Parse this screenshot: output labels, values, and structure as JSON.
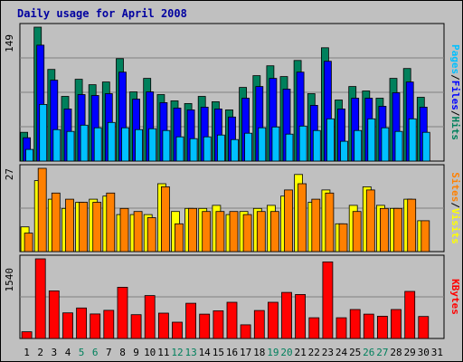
{
  "title": "Daily usage for April 2008",
  "colors": {
    "hits": "#00805c",
    "files": "#0000ff",
    "pages": "#00c0ff",
    "visits": "#ffff00",
    "sites": "#ff8000",
    "kbytes": "#ff0000",
    "weekend_label": "#00805c",
    "weekday_label": "#000000",
    "panel_bg": "#c0c0c0",
    "gridline": "#808080",
    "separator": "#000000"
  },
  "chart_data": [
    {
      "type": "bar",
      "panel": "hits-files-pages",
      "title": "Daily usage for April 2008",
      "ymax_label": "149",
      "ylim": [
        0,
        149
      ],
      "legend": [
        {
          "name": "Pages",
          "color": "#00c0ff"
        },
        {
          "name": "/",
          "color": "#000000"
        },
        {
          "name": "Files",
          "color": "#0000ff"
        },
        {
          "name": "/",
          "color": "#000000"
        },
        {
          "name": "Hits",
          "color": "#00805c"
        }
      ],
      "categories": [
        "1",
        "2",
        "3",
        "4",
        "5",
        "6",
        "7",
        "8",
        "9",
        "10",
        "11",
        "12",
        "13",
        "14",
        "15",
        "16",
        "17",
        "18",
        "19",
        "20",
        "21",
        "22",
        "23",
        "24",
        "25",
        "26",
        "27",
        "28",
        "29",
        "30",
        "31"
      ],
      "series": [
        {
          "name": "Hits",
          "values": [
            32,
            149,
            102,
            72,
            91,
            85,
            88,
            114,
            77,
            92,
            74,
            67,
            64,
            72,
            66,
            57,
            82,
            95,
            106,
            94,
            112,
            75,
            126,
            68,
            83,
            78,
            70,
            92,
            103,
            71,
            0
          ]
        },
        {
          "name": "Files",
          "values": [
            26,
            129,
            90,
            58,
            74,
            73,
            75,
            99,
            69,
            77,
            65,
            59,
            57,
            60,
            58,
            49,
            70,
            83,
            92,
            80,
            99,
            62,
            111,
            58,
            70,
            70,
            61,
            76,
            88,
            60,
            0
          ]
        },
        {
          "name": "Pages",
          "values": [
            13,
            63,
            35,
            33,
            40,
            37,
            43,
            37,
            35,
            36,
            34,
            27,
            25,
            27,
            29,
            24,
            31,
            37,
            38,
            30,
            39,
            34,
            47,
            22,
            34,
            47,
            37,
            33,
            47,
            32,
            0
          ]
        }
      ]
    },
    {
      "type": "bar",
      "panel": "visits-sites",
      "ymax_label": "27",
      "ylim": [
        0,
        27
      ],
      "legend": [
        {
          "name": "Sites",
          "color": "#ff8000"
        },
        {
          "name": "/",
          "color": "#000000"
        },
        {
          "name": "Visits",
          "color": "#ffff00"
        }
      ],
      "categories": [
        "1",
        "2",
        "3",
        "4",
        "5",
        "6",
        "7",
        "8",
        "9",
        "10",
        "11",
        "12",
        "13",
        "14",
        "15",
        "16",
        "17",
        "18",
        "19",
        "20",
        "21",
        "22",
        "23",
        "24",
        "25",
        "26",
        "27",
        "28",
        "29",
        "30",
        "31"
      ],
      "series": [
        {
          "name": "Visits",
          "values": [
            8,
            23,
            17,
            14,
            16,
            17,
            18,
            12,
            12,
            12,
            22,
            13,
            14,
            14,
            15,
            12,
            13,
            14,
            15,
            18,
            25,
            16,
            20,
            9,
            15,
            21,
            15,
            14,
            17,
            10,
            0
          ]
        },
        {
          "name": "Sites",
          "values": [
            6,
            27,
            19,
            17,
            16,
            16,
            19,
            14,
            13,
            11,
            21,
            9,
            14,
            13,
            13,
            13,
            12,
            13,
            13,
            20,
            22,
            17,
            19,
            9,
            13,
            20,
            14,
            14,
            17,
            10,
            0
          ]
        }
      ]
    },
    {
      "type": "bar",
      "panel": "kbytes",
      "ymax_label": "1540",
      "ylim": [
        0,
        1540
      ],
      "legend": [
        {
          "name": "KBytes",
          "color": "#ff0000"
        }
      ],
      "categories": [
        "1",
        "2",
        "3",
        "4",
        "5",
        "6",
        "7",
        "8",
        "9",
        "10",
        "11",
        "12",
        "13",
        "14",
        "15",
        "16",
        "17",
        "18",
        "19",
        "20",
        "21",
        "22",
        "23",
        "24",
        "25",
        "26",
        "27",
        "28",
        "29",
        "30",
        "31"
      ],
      "series": [
        {
          "name": "KBytes",
          "values": [
            130,
            1540,
            920,
            495,
            590,
            475,
            545,
            990,
            460,
            830,
            490,
            315,
            680,
            470,
            535,
            700,
            265,
            540,
            700,
            890,
            850,
            400,
            1480,
            400,
            560,
            470,
            430,
            560,
            910,
            425,
            0
          ]
        }
      ]
    }
  ],
  "x_labels": [
    {
      "text": "1",
      "weekend": false
    },
    {
      "text": "2",
      "weekend": false
    },
    {
      "text": "3",
      "weekend": false
    },
    {
      "text": "4",
      "weekend": false
    },
    {
      "text": "5",
      "weekend": true
    },
    {
      "text": "6",
      "weekend": true
    },
    {
      "text": "7",
      "weekend": false
    },
    {
      "text": "8",
      "weekend": false
    },
    {
      "text": "9",
      "weekend": false
    },
    {
      "text": "10",
      "weekend": false
    },
    {
      "text": "11",
      "weekend": false
    },
    {
      "text": "12",
      "weekend": true
    },
    {
      "text": "13",
      "weekend": true
    },
    {
      "text": "14",
      "weekend": false
    },
    {
      "text": "15",
      "weekend": false
    },
    {
      "text": "16",
      "weekend": false
    },
    {
      "text": "17",
      "weekend": false
    },
    {
      "text": "18",
      "weekend": false
    },
    {
      "text": "19",
      "weekend": true
    },
    {
      "text": "20",
      "weekend": true
    },
    {
      "text": "21",
      "weekend": false
    },
    {
      "text": "22",
      "weekend": false
    },
    {
      "text": "23",
      "weekend": false
    },
    {
      "text": "24",
      "weekend": false
    },
    {
      "text": "25",
      "weekend": false
    },
    {
      "text": "26",
      "weekend": true
    },
    {
      "text": "27",
      "weekend": true
    },
    {
      "text": "28",
      "weekend": false
    },
    {
      "text": "29",
      "weekend": false
    },
    {
      "text": "30",
      "weekend": false
    },
    {
      "text": "31",
      "weekend": false
    }
  ]
}
